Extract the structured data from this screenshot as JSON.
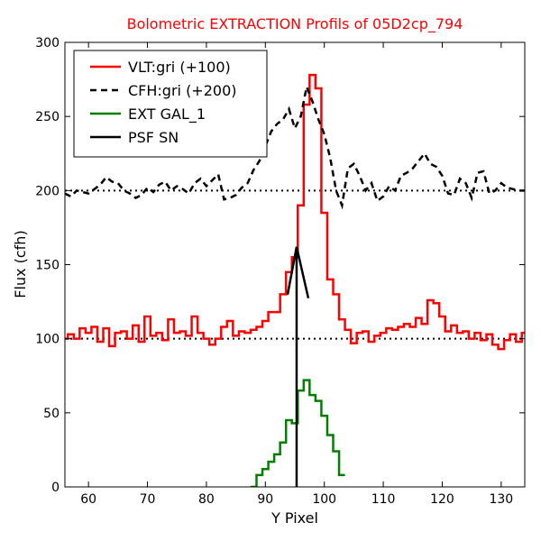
{
  "chart_data": {
    "type": "line",
    "title": "Bolometric EXTRACTION Profils of 05D2cp_794",
    "title_color": "#ff0000",
    "xlabel": "Y Pixel",
    "ylabel": "Flux (cfh)",
    "xlim": [
      56,
      134
    ],
    "ylim": [
      0,
      300
    ],
    "xticks": [
      60,
      70,
      80,
      90,
      100,
      110,
      120,
      130
    ],
    "yticks": [
      0,
      50,
      100,
      150,
      200,
      250,
      300
    ],
    "grid": false,
    "legend_position": "top-left",
    "reference_lines": [
      {
        "y": 100,
        "style": "dotted",
        "color": "#000000"
      },
      {
        "y": 200,
        "style": "dotted",
        "color": "#000000"
      }
    ],
    "series": [
      {
        "name": "VLT:gri (+100)",
        "color": "#ff0000",
        "style": "steps",
        "x": [
          56,
          57,
          58,
          59,
          60,
          61,
          62,
          63,
          64,
          65,
          66,
          67,
          68,
          69,
          70,
          71,
          72,
          73,
          74,
          75,
          76,
          77,
          78,
          79,
          80,
          81,
          82,
          83,
          84,
          85,
          86,
          87,
          88,
          89,
          90,
          91,
          92,
          93,
          94,
          95,
          96,
          97,
          98,
          99,
          100,
          101,
          102,
          103,
          104,
          105,
          106,
          107,
          108,
          109,
          110,
          111,
          112,
          113,
          114,
          115,
          116,
          117,
          118,
          119,
          120,
          121,
          122,
          123,
          124,
          125,
          126,
          127,
          128,
          129,
          130,
          131,
          132,
          133,
          134
        ],
        "y": [
          100,
          103,
          100,
          107,
          104,
          108,
          98,
          107,
          95,
          104,
          105,
          100,
          109,
          98,
          115,
          102,
          104,
          99,
          113,
          104,
          105,
          102,
          115,
          104,
          100,
          96,
          100,
          108,
          112,
          102,
          105,
          104,
          106,
          108,
          112,
          118,
          118,
          130,
          145,
          155,
          190,
          258,
          278,
          269,
          185,
          140,
          130,
          113,
          106,
          97,
          104,
          105,
          98,
          102,
          104,
          107,
          106,
          108,
          110,
          108,
          114,
          110,
          126,
          124,
          115,
          105,
          109,
          104,
          105,
          100,
          104,
          99,
          103,
          96,
          93,
          99,
          103,
          98,
          104
        ]
      },
      {
        "name": "CFH:gri (+200)",
        "color": "#000000",
        "style": "dashed",
        "x": [
          56,
          57,
          58,
          59,
          60,
          61,
          62,
          63,
          64,
          65,
          66,
          67,
          68,
          69,
          70,
          71,
          72,
          73,
          74,
          75,
          76,
          77,
          78,
          79,
          80,
          81,
          82,
          83,
          84,
          85,
          86,
          87,
          88,
          89,
          90,
          91,
          92,
          93,
          94,
          95,
          96,
          97,
          98,
          99,
          100,
          101,
          102,
          103,
          104,
          105,
          106,
          107,
          108,
          109,
          110,
          111,
          112,
          113,
          114,
          115,
          116,
          117,
          118,
          119,
          120,
          121,
          122,
          123,
          124,
          125,
          126,
          127,
          128,
          129,
          130,
          131,
          132,
          133,
          134
        ],
        "y": [
          198,
          196,
          200,
          199,
          198,
          201,
          204,
          209,
          206,
          205,
          200,
          198,
          195,
          197,
          202,
          199,
          204,
          206,
          200,
          203,
          201,
          198,
          205,
          208,
          203,
          207,
          211,
          194,
          195,
          197,
          202,
          205,
          214,
          220,
          230,
          240,
          245,
          248,
          255,
          242,
          250,
          270,
          260,
          248,
          238,
          222,
          200,
          190,
          215,
          218,
          210,
          200,
          205,
          193,
          196,
          203,
          200,
          210,
          212,
          215,
          220,
          225,
          218,
          216,
          210,
          198,
          197,
          208,
          205,
          195,
          212,
          213,
          198,
          200,
          205,
          202,
          201,
          200,
          200
        ]
      },
      {
        "name": "EXT GAL_1",
        "color": "#008000",
        "style": "steps",
        "x": [
          88,
          89,
          90,
          91,
          92,
          93,
          94,
          95,
          96,
          97,
          98,
          99,
          100,
          101,
          102,
          103
        ],
        "y": [
          0,
          8,
          12,
          17,
          22,
          30,
          45,
          43,
          65,
          72,
          62,
          58,
          48,
          35,
          24,
          8
        ]
      },
      {
        "name": "PSF SN",
        "color": "#000000",
        "style": "arrow",
        "x": [
          95.3,
          95.3
        ],
        "y": [
          0,
          162
        ]
      }
    ]
  }
}
